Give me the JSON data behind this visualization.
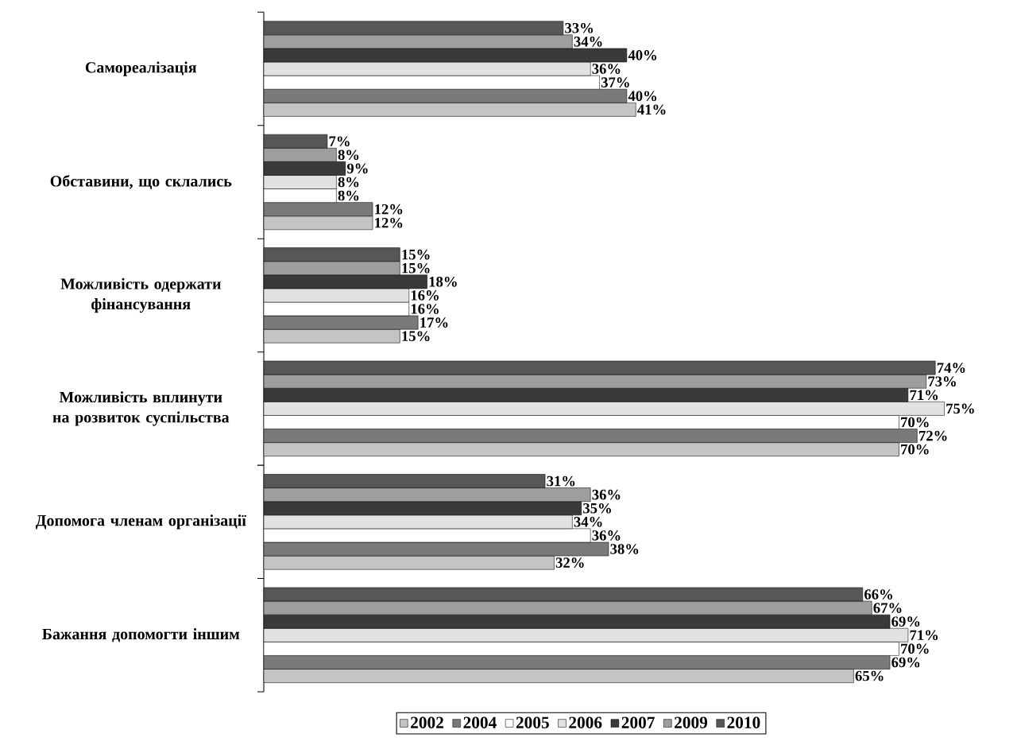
{
  "chart_data": {
    "type": "bar",
    "orientation": "horizontal",
    "legend": "bottom",
    "categories": [
      "Самореалізація",
      "Обставини, що склались",
      "Можливість одержати фінансування",
      "Можливість вплинути на розвиток суспільства",
      "Допомога членам організації",
      "Бажання допомогти іншим"
    ],
    "series": [
      {
        "name": "2002",
        "color": "#c4c4c4",
        "values": [
          41,
          12,
          15,
          70,
          32,
          65
        ],
        "value_labels": [
          "41%",
          "12%",
          "15%",
          "70%",
          "32%",
          "65%"
        ]
      },
      {
        "name": "2004",
        "color": "#7a7a7a",
        "values": [
          40,
          12,
          17,
          72,
          38,
          69
        ],
        "value_labels": [
          "40%",
          "12%",
          "17%",
          "72%",
          "38%",
          "69%"
        ]
      },
      {
        "name": "2005",
        "color": "#ffffff",
        "values": [
          37,
          8,
          16,
          70,
          36,
          70
        ],
        "value_labels": [
          "37%",
          "8%",
          "16%",
          "70%",
          "36%",
          "70%"
        ]
      },
      {
        "name": "2006",
        "color": "#e2e2e2",
        "values": [
          36,
          8,
          16,
          75,
          34,
          71
        ],
        "value_labels": [
          "36%",
          "8%",
          "16%",
          "75%",
          "34%",
          "71%"
        ]
      },
      {
        "name": "2007",
        "color": "#3a3a3a",
        "values": [
          40,
          9,
          18,
          71,
          35,
          69
        ],
        "value_labels": [
          "40%",
          "9%",
          "18%",
          "71%",
          "35%",
          "69%"
        ]
      },
      {
        "name": "2009",
        "color": "#9e9e9e",
        "values": [
          34,
          8,
          15,
          73,
          36,
          67
        ],
        "value_labels": [
          "34%",
          "8%",
          "15%",
          "73%",
          "36%",
          "67%"
        ]
      },
      {
        "name": "2010",
        "color": "#575757",
        "values": [
          33,
          7,
          15,
          74,
          31,
          66
        ],
        "value_labels": [
          "33%",
          "7%",
          "15%",
          "74%",
          "31%",
          "66%"
        ]
      }
    ]
  }
}
